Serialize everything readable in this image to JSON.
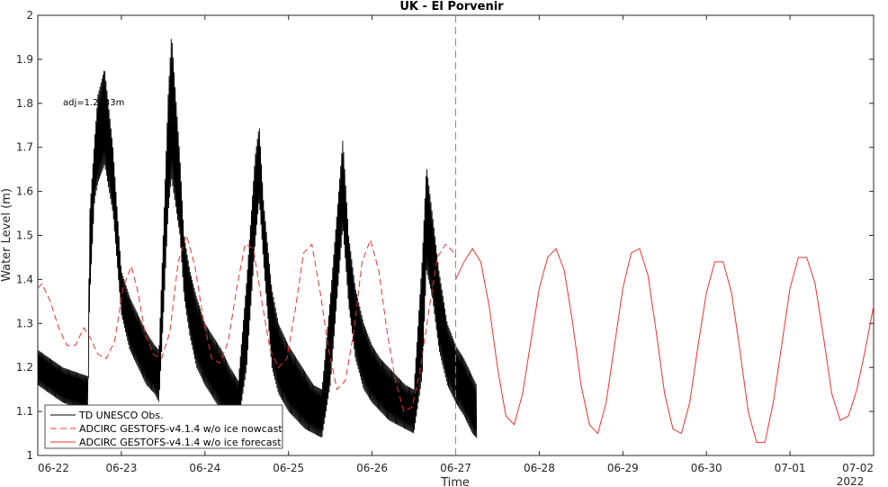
{
  "chart_data": {
    "type": "line",
    "title": "UK - El Porvenir",
    "xlabel": "Time",
    "ylabel": "Water Level (m)",
    "year_label": "2022",
    "annotation": "adj=1.2233m",
    "xlim": [
      "2022-06-22",
      "2022-07-02"
    ],
    "ylim": [
      1,
      2
    ],
    "x_ticks": [
      "06-22",
      "06-23",
      "06-24",
      "06-25",
      "06-26",
      "06-27",
      "06-28",
      "06-29",
      "06-30",
      "07-01",
      "07-02"
    ],
    "y_ticks": [
      "1",
      "1.1",
      "1.2",
      "1.3",
      "1.4",
      "1.5",
      "1.6",
      "1.7",
      "1.8",
      "1.9",
      "2"
    ],
    "forecast_start": "2022-06-27",
    "grid": false,
    "legend_position": "bottom-left",
    "series": [
      {
        "name": "TD UNESCO Obs.",
        "color": "#000000",
        "style": "solid",
        "band": true,
        "x_days": [
          0.0,
          0.3,
          0.6,
          0.62,
          0.68,
          0.72,
          0.8,
          0.9,
          1.0,
          1.1,
          1.2,
          1.3,
          1.4,
          1.45,
          1.5,
          1.56,
          1.6,
          1.7,
          1.75,
          1.82,
          1.9,
          2.0,
          2.1,
          2.2,
          2.3,
          2.4,
          2.5,
          2.6,
          2.65,
          2.7,
          2.75,
          2.8,
          2.88,
          3.0,
          3.1,
          3.2,
          3.3,
          3.4,
          3.5,
          3.6,
          3.65,
          3.72,
          3.8,
          3.9,
          4.0,
          4.1,
          4.2,
          4.3,
          4.4,
          4.5,
          4.6,
          4.65,
          4.72,
          4.8,
          4.9,
          5.0,
          5.1,
          5.15,
          5.2,
          5.25
        ],
        "upper": [
          1.24,
          1.2,
          1.18,
          1.55,
          1.72,
          1.82,
          1.88,
          1.7,
          1.42,
          1.36,
          1.32,
          1.28,
          1.25,
          1.24,
          1.5,
          1.82,
          1.96,
          1.68,
          1.5,
          1.42,
          1.36,
          1.3,
          1.27,
          1.24,
          1.2,
          1.17,
          1.4,
          1.68,
          1.75,
          1.58,
          1.48,
          1.38,
          1.3,
          1.25,
          1.22,
          1.19,
          1.16,
          1.15,
          1.36,
          1.6,
          1.72,
          1.5,
          1.38,
          1.3,
          1.25,
          1.22,
          1.2,
          1.18,
          1.16,
          1.15,
          1.45,
          1.66,
          1.55,
          1.42,
          1.3,
          1.25,
          1.22,
          1.2,
          1.18,
          1.16
        ],
        "lower": [
          1.16,
          1.12,
          1.1,
          1.35,
          1.58,
          1.62,
          1.66,
          1.55,
          1.32,
          1.24,
          1.2,
          1.16,
          1.14,
          1.12,
          1.3,
          1.55,
          1.63,
          1.5,
          1.36,
          1.27,
          1.2,
          1.16,
          1.13,
          1.1,
          1.08,
          1.07,
          1.2,
          1.48,
          1.58,
          1.44,
          1.32,
          1.2,
          1.14,
          1.1,
          1.08,
          1.06,
          1.05,
          1.04,
          1.16,
          1.4,
          1.52,
          1.34,
          1.22,
          1.15,
          1.12,
          1.1,
          1.08,
          1.07,
          1.06,
          1.05,
          1.18,
          1.42,
          1.36,
          1.24,
          1.16,
          1.12,
          1.09,
          1.07,
          1.05,
          1.04
        ]
      },
      {
        "name": "ADCIRC GESTOFS-v4.1.4 w/o ice nowcast",
        "color": "#e8332d",
        "style": "dashed",
        "x_days": [
          0.0,
          0.05,
          0.15,
          0.25,
          0.35,
          0.45,
          0.55,
          0.62,
          0.72,
          0.82,
          0.92,
          1.02,
          1.12,
          1.2,
          1.28,
          1.38,
          1.48,
          1.58,
          1.68,
          1.78,
          1.88,
          1.98,
          2.08,
          2.18,
          2.28,
          2.38,
          2.48,
          2.58,
          2.68,
          2.78,
          2.88,
          2.98,
          3.08,
          3.18,
          3.28,
          3.38,
          3.48,
          3.58,
          3.68,
          3.78,
          3.88,
          3.98,
          4.08,
          4.18,
          4.28,
          4.38,
          4.48,
          4.58,
          4.68,
          4.78,
          4.88,
          4.98,
          5.0
        ],
        "y": [
          1.38,
          1.39,
          1.35,
          1.29,
          1.25,
          1.25,
          1.29,
          1.27,
          1.23,
          1.22,
          1.26,
          1.38,
          1.43,
          1.37,
          1.28,
          1.23,
          1.22,
          1.28,
          1.44,
          1.5,
          1.43,
          1.31,
          1.22,
          1.21,
          1.26,
          1.38,
          1.48,
          1.47,
          1.35,
          1.24,
          1.2,
          1.22,
          1.33,
          1.46,
          1.48,
          1.37,
          1.24,
          1.15,
          1.17,
          1.28,
          1.44,
          1.49,
          1.42,
          1.28,
          1.17,
          1.1,
          1.11,
          1.2,
          1.33,
          1.45,
          1.48,
          1.46,
          1.45
        ]
      },
      {
        "name": "ADCIRC GESTOFS-v4.1.4 w/o ice forecast",
        "color": "#e8332d",
        "style": "solid",
        "x_days": [
          5.0,
          5.1,
          5.2,
          5.3,
          5.4,
          5.5,
          5.6,
          5.7,
          5.8,
          5.9,
          6.0,
          6.1,
          6.2,
          6.3,
          6.4,
          6.5,
          6.6,
          6.7,
          6.8,
          6.9,
          7.0,
          7.1,
          7.2,
          7.3,
          7.4,
          7.5,
          7.6,
          7.7,
          7.8,
          7.9,
          8.0,
          8.1,
          8.2,
          8.3,
          8.4,
          8.5,
          8.6,
          8.7,
          8.8,
          8.9,
          9.0,
          9.1,
          9.2,
          9.3,
          9.4,
          9.5,
          9.6,
          9.7,
          9.8,
          9.9,
          10.0
        ],
        "y": [
          1.4,
          1.44,
          1.47,
          1.44,
          1.34,
          1.2,
          1.09,
          1.07,
          1.14,
          1.26,
          1.38,
          1.45,
          1.47,
          1.42,
          1.3,
          1.16,
          1.07,
          1.05,
          1.12,
          1.25,
          1.38,
          1.46,
          1.47,
          1.41,
          1.28,
          1.14,
          1.06,
          1.05,
          1.12,
          1.25,
          1.37,
          1.44,
          1.44,
          1.37,
          1.24,
          1.1,
          1.03,
          1.03,
          1.12,
          1.25,
          1.38,
          1.45,
          1.45,
          1.39,
          1.27,
          1.14,
          1.08,
          1.09,
          1.15,
          1.24,
          1.34
        ]
      }
    ]
  }
}
